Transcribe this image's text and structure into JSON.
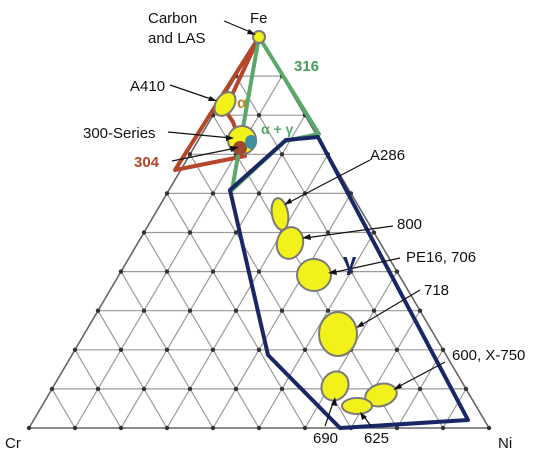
{
  "vertices": {
    "fe": "Fe",
    "cr": "Cr",
    "ni": "Ni"
  },
  "phases": {
    "alpha": "α",
    "alpha_gamma": "α + γ",
    "gamma": "γ"
  },
  "alloys": {
    "carbon_las": [
      "Carbon",
      "and LAS"
    ],
    "a410": "A410",
    "series_300": "300-Series",
    "s316": "316",
    "s304": "304",
    "a286": "A286",
    "a800": "800",
    "pe16": "PE16, 706",
    "a718": "718",
    "a600": "600, X-750",
    "a690": "690",
    "a625": "625"
  },
  "colors": {
    "grid": "#9a9a9a",
    "alpha_region": "#b5462a",
    "alpha_gamma_region": "#5aa86a",
    "gamma_region": "#1a2766",
    "ellipse_fill": "#f2f21a",
    "ellipse_stroke": "#7a7a7a",
    "label_304": "#b5462a",
    "label_316": "#4a9a5a",
    "label_gamma": "#1a2766",
    "label_alpha": "#b58a2a"
  }
}
